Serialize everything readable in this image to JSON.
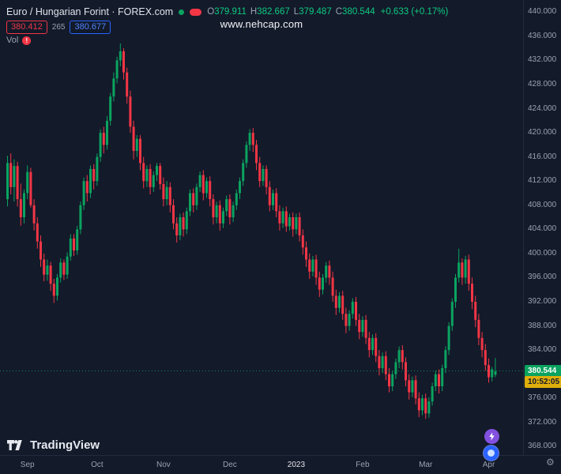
{
  "header": {
    "symbol_title": "Euro / Hungarian Forint · FOREX.com",
    "ohlc": {
      "o_label": "O",
      "o_value": "379.911",
      "h_label": "H",
      "h_value": "382.667",
      "l_label": "L",
      "l_value": "379.487",
      "c_label": "C",
      "c_value": "380.544",
      "change": "+0.633 (+0.17%)"
    },
    "bid": "380.412",
    "spread": "265",
    "ask": "380.677",
    "vol_label": "Vol",
    "vol_error": "!"
  },
  "watermark": "www.nehcap.com",
  "price_label": {
    "value": "380.544",
    "countdown": "10:52:05"
  },
  "logo": {
    "text": "TradingView"
  },
  "gear": "⚙",
  "colors": {
    "background": "#131a2a",
    "up": "#0ba360",
    "down": "#f23645",
    "accent_blue": "#2962ff",
    "axis_text": "#9ba3b2",
    "countdown_bg": "#dfae0b",
    "purple": "#8250df"
  },
  "price_axis": {
    "labels": [
      "440.000",
      "436.000",
      "432.000",
      "428.000",
      "424.000",
      "420.000",
      "416.000",
      "412.000",
      "408.000",
      "404.000",
      "400.000",
      "396.000",
      "392.000",
      "388.000",
      "384.000",
      "376.000",
      "372.000",
      "368.000"
    ]
  },
  "chart_data": {
    "type": "candlestick",
    "title": "Euro / Hungarian Forint",
    "exchange": "FOREX.com",
    "ylim": [
      367,
      442
    ],
    "legend_position": "none",
    "grid": false,
    "x_ticks": [
      {
        "label": "Sep",
        "i": 6
      },
      {
        "label": "Oct",
        "i": 27
      },
      {
        "label": "Nov",
        "i": 47
      },
      {
        "label": "Dec",
        "i": 67
      },
      {
        "label": "2023",
        "i": 87,
        "major": true
      },
      {
        "label": "Feb",
        "i": 107
      },
      {
        "label": "Mar",
        "i": 126
      },
      {
        "label": "Apr",
        "i": 145
      }
    ],
    "last_price": 380.544,
    "candles": [
      [
        409,
        416.2,
        407.8,
        415
      ],
      [
        415,
        416.6,
        409.8,
        411
      ],
      [
        411,
        415.6,
        408.6,
        414.5
      ],
      [
        414.5,
        415.2,
        407.8,
        409
      ],
      [
        409,
        411.6,
        404.6,
        406
      ],
      [
        406,
        410.6,
        405,
        410
      ],
      [
        410,
        414.6,
        409,
        413.5
      ],
      [
        413.5,
        414.2,
        407.6,
        408
      ],
      [
        408,
        409,
        403.8,
        405
      ],
      [
        405,
        406,
        400.8,
        402
      ],
      [
        402,
        403,
        397.8,
        399
      ],
      [
        399,
        400,
        395.4,
        396.5
      ],
      [
        396.5,
        399,
        395.5,
        398
      ],
      [
        398,
        398.6,
        393.8,
        395
      ],
      [
        395,
        395.8,
        391.8,
        393
      ],
      [
        393,
        396.6,
        392.2,
        396
      ],
      [
        396,
        399.2,
        395.2,
        398.5
      ],
      [
        398.5,
        399,
        395.6,
        396.5
      ],
      [
        396.5,
        400.2,
        395.8,
        399.5
      ],
      [
        399.5,
        403.2,
        398.8,
        402.5
      ],
      [
        402.5,
        403.2,
        399.6,
        400.5
      ],
      [
        400.5,
        404.6,
        399.8,
        404
      ],
      [
        404,
        408.6,
        403.2,
        408
      ],
      [
        408,
        412.6,
        407.2,
        412
      ],
      [
        412,
        413,
        408.6,
        410
      ],
      [
        410,
        414.6,
        409.2,
        414
      ],
      [
        414,
        414.8,
        410.6,
        412
      ],
      [
        412,
        416.6,
        411.2,
        416
      ],
      [
        416,
        420.6,
        415.2,
        420
      ],
      [
        420,
        421,
        416.6,
        418
      ],
      [
        418,
        422.8,
        417.2,
        422
      ],
      [
        422,
        426.6,
        421.2,
        426
      ],
      [
        426,
        430,
        425.2,
        429
      ],
      [
        429,
        432.6,
        428.2,
        432
      ],
      [
        432,
        434.8,
        431,
        433.5
      ],
      [
        433.5,
        434,
        428.8,
        430
      ],
      [
        430,
        430.8,
        424.8,
        426
      ],
      [
        426,
        427,
        420,
        421
      ],
      [
        421,
        422,
        415.6,
        417
      ],
      [
        417,
        419.6,
        416,
        419
      ],
      [
        419,
        419.6,
        413.8,
        415
      ],
      [
        415,
        416,
        410.8,
        412
      ],
      [
        412,
        414.6,
        411,
        414
      ],
      [
        414,
        414.8,
        409.8,
        411
      ],
      [
        411,
        413.6,
        410.2,
        413
      ],
      [
        413,
        415,
        412,
        414.5
      ],
      [
        414.5,
        415,
        410.6,
        411.5
      ],
      [
        411.5,
        412.6,
        407.8,
        409
      ],
      [
        409,
        412,
        408,
        411
      ],
      [
        411,
        411.8,
        406.8,
        408
      ],
      [
        408,
        409,
        404,
        405
      ],
      [
        405,
        406,
        401.8,
        403
      ],
      [
        403,
        406.6,
        402.2,
        406
      ],
      [
        406,
        406.8,
        402.8,
        404
      ],
      [
        404,
        407.6,
        403.2,
        407
      ],
      [
        407,
        410.6,
        406.2,
        410
      ],
      [
        410,
        410.8,
        406.8,
        408
      ],
      [
        408,
        411.6,
        407.2,
        411
      ],
      [
        411,
        413.6,
        410.2,
        413
      ],
      [
        413,
        413.8,
        408.8,
        410
      ],
      [
        410,
        412.6,
        409.2,
        412
      ],
      [
        412,
        412.8,
        407.8,
        409
      ],
      [
        409,
        409.8,
        404.8,
        406
      ],
      [
        406,
        408.6,
        405,
        408
      ],
      [
        408,
        408.8,
        403.8,
        405
      ],
      [
        405,
        407.6,
        404.2,
        407
      ],
      [
        407,
        409.6,
        406.2,
        409
      ],
      [
        409,
        409.8,
        404.8,
        406
      ],
      [
        406,
        408.6,
        405.2,
        408
      ],
      [
        408,
        410.6,
        407.2,
        410
      ],
      [
        410,
        412.6,
        409,
        412
      ],
      [
        412,
        415.6,
        411.2,
        415
      ],
      [
        415,
        418.6,
        414.2,
        418
      ],
      [
        418,
        420.6,
        417,
        420
      ],
      [
        420,
        420.8,
        416.8,
        418
      ],
      [
        418,
        418.8,
        413.8,
        415
      ],
      [
        415,
        416,
        411,
        412
      ],
      [
        412,
        414.6,
        411.2,
        414
      ],
      [
        414,
        414.6,
        409.8,
        411
      ],
      [
        411,
        412,
        407,
        408
      ],
      [
        408,
        410.6,
        407.2,
        410
      ],
      [
        410,
        410.8,
        406,
        407
      ],
      [
        407,
        408,
        403.8,
        405
      ],
      [
        405,
        407.6,
        404.2,
        407
      ],
      [
        407,
        407.8,
        403.6,
        404.5
      ],
      [
        404.5,
        406.6,
        403.8,
        406
      ],
      [
        406,
        406.8,
        402.8,
        404
      ],
      [
        404,
        406.6,
        403.2,
        406
      ],
      [
        406,
        406.8,
        402,
        403
      ],
      [
        403,
        404,
        399.8,
        401
      ],
      [
        401,
        402,
        397.8,
        399
      ],
      [
        399,
        400,
        395.8,
        397
      ],
      [
        397,
        399.6,
        396.2,
        399
      ],
      [
        399,
        399.8,
        394.8,
        396
      ],
      [
        396,
        397,
        392.8,
        394
      ],
      [
        394,
        396.6,
        393.2,
        396
      ],
      [
        396,
        398.6,
        395.2,
        398
      ],
      [
        398,
        398.8,
        394.8,
        396
      ],
      [
        396,
        397,
        392,
        393
      ],
      [
        393,
        394,
        389.8,
        391
      ],
      [
        391,
        393.6,
        390.2,
        393
      ],
      [
        393,
        393.8,
        389,
        390
      ],
      [
        390,
        391,
        386.8,
        388
      ],
      [
        388,
        390.6,
        387.2,
        390
      ],
      [
        390,
        392.6,
        389.2,
        392
      ],
      [
        392,
        392.8,
        388,
        389
      ],
      [
        389,
        390,
        385.8,
        387
      ],
      [
        387,
        389.6,
        386.2,
        389
      ],
      [
        389,
        389.8,
        385,
        386
      ],
      [
        386,
        387,
        382.8,
        384
      ],
      [
        384,
        386.6,
        383.2,
        386
      ],
      [
        386,
        386.8,
        382,
        383
      ],
      [
        383,
        384,
        379.8,
        381
      ],
      [
        381,
        383.6,
        380.2,
        383
      ],
      [
        383,
        383.8,
        379,
        380
      ],
      [
        380,
        381,
        377,
        378
      ],
      [
        378,
        380.6,
        377.2,
        380
      ],
      [
        380,
        382.6,
        379.2,
        382
      ],
      [
        382,
        384.6,
        381,
        384
      ],
      [
        384,
        384.8,
        380.8,
        382
      ],
      [
        382,
        382.8,
        378,
        379
      ],
      [
        379,
        380,
        375.8,
        377
      ],
      [
        377,
        379.6,
        376.2,
        379
      ],
      [
        379,
        379.8,
        375,
        376
      ],
      [
        376,
        377,
        372.9,
        374
      ],
      [
        374,
        376.6,
        373.2,
        376
      ],
      [
        376,
        376.8,
        372.6,
        373.5
      ],
      [
        373.5,
        376.2,
        372.8,
        375.5
      ],
      [
        375.5,
        378.6,
        374.8,
        378
      ],
      [
        378,
        380.6,
        377.2,
        380
      ],
      [
        380,
        380.8,
        376.8,
        378
      ],
      [
        378,
        381.6,
        377.2,
        381
      ],
      [
        381,
        384.6,
        380.2,
        384
      ],
      [
        384,
        388.6,
        383.2,
        388
      ],
      [
        388,
        392.6,
        387.2,
        392
      ],
      [
        392,
        396.6,
        391,
        396
      ],
      [
        396,
        400.8,
        395.2,
        398.5
      ],
      [
        398.5,
        399.2,
        394.8,
        396
      ],
      [
        396,
        399.6,
        395,
        399
      ],
      [
        399,
        399.8,
        393.8,
        395
      ],
      [
        395,
        396,
        390.8,
        392
      ],
      [
        392,
        393,
        387.8,
        389
      ],
      [
        389,
        390,
        384.8,
        386
      ],
      [
        386,
        387,
        382.8,
        384
      ],
      [
        384,
        385,
        380.6,
        381.5
      ],
      [
        381.5,
        382.6,
        378.6,
        379.5
      ],
      [
        379.5,
        381.2,
        378.8,
        380.8
      ],
      [
        379.9,
        382.7,
        379.5,
        380.5
      ]
    ]
  }
}
